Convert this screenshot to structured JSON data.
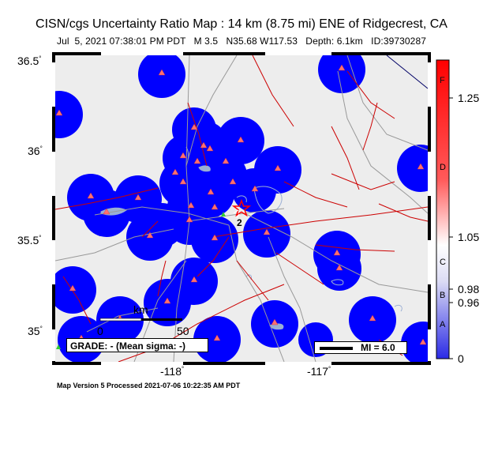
{
  "title": "CISN/cgs Uncertainty Ratio Map : 14 km (8.75 mi) ENE of Ridgecrest, CA",
  "event_info": "Jul  5, 2021 07:38:01 PM PDT   M 3.5   N35.68 W117.53   Depth: 6.1km   ID:39730287",
  "footer": "Map Version 5 Processed 2021-07-06 10:22:35 AM PDT",
  "axes": {
    "lat_ticks": [
      "36.5",
      "36",
      "35.5",
      "35"
    ],
    "lon_ticks": [
      "-118",
      "-117"
    ],
    "degree_symbol": "°"
  },
  "scale_bar": {
    "unit": "km",
    "start": "0",
    "end": "50"
  },
  "grade": "GRADE: - (Mean sigma: -)",
  "mi_legend": "MI = 6.0",
  "station_label": "2",
  "colorbar": {
    "values": [
      "1.25",
      "1.05",
      "0.98",
      "0.96",
      "0"
    ],
    "grades": [
      "F",
      "D",
      "C",
      "B",
      "A"
    ],
    "colors": {
      "low": "#0000e6",
      "mid": "#ffffff",
      "high": "#ff0000"
    }
  },
  "colors": {
    "map_background": "#ededed",
    "uncertainty_blob": "#0000ff",
    "station_marker": "#ff8080",
    "fault_line": "#cc0000",
    "road": "#999999",
    "water": "#9aaed4"
  }
}
